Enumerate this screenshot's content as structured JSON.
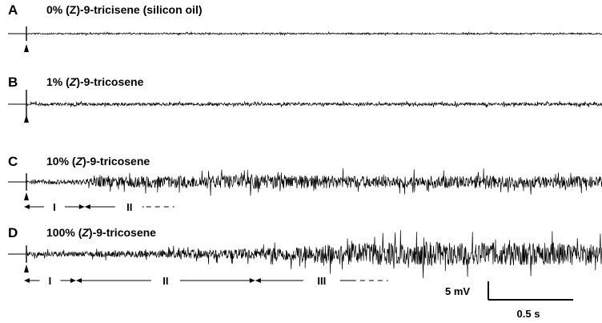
{
  "chart_data": {
    "type": "line",
    "panels": [
      {
        "label": "A",
        "title_parts": [
          {
            "text": "0% (",
            "italic": false
          },
          {
            "text": "Z",
            "italic": false
          },
          {
            "text": ")-9-tricisene  (silicon oil)",
            "italic": false
          }
        ],
        "activity_profile": [
          [
            0,
            0.06
          ],
          [
            1,
            0.06
          ]
        ],
        "stimulus_artifact": 0.5,
        "phases": []
      },
      {
        "label": "B",
        "title_parts": [
          {
            "text": "1% (",
            "italic": false
          },
          {
            "text": "Z",
            "italic": true
          },
          {
            "text": ")-9-tricosene",
            "italic": false
          }
        ],
        "activity_profile": [
          [
            0,
            0.12
          ],
          [
            1,
            0.12
          ]
        ],
        "stimulus_artifact": 1.0,
        "phases": []
      },
      {
        "label": "C",
        "title_parts": [
          {
            "text": "10% (",
            "italic": false
          },
          {
            "text": "Z",
            "italic": true
          },
          {
            "text": ")-9-tricosene",
            "italic": false
          }
        ],
        "activity_profile": [
          [
            0,
            0.18
          ],
          [
            0.1,
            0.22
          ],
          [
            0.12,
            0.4
          ],
          [
            0.4,
            0.62
          ],
          [
            0.6,
            0.5
          ],
          [
            0.8,
            0.52
          ],
          [
            1,
            0.45
          ]
        ],
        "stimulus_artifact": 0.6,
        "phases": [
          {
            "label": "I",
            "start": 0.0,
            "end": 0.105,
            "open_end": false
          },
          {
            "label": "II",
            "start": 0.105,
            "end": 0.26,
            "open_end": true
          }
        ]
      },
      {
        "label": "D",
        "title_parts": [
          {
            "text": "100% (",
            "italic": false
          },
          {
            "text": "Z",
            "italic": true
          },
          {
            "text": ")-9-tricosene",
            "italic": false
          }
        ],
        "activity_profile": [
          [
            0,
            0.18
          ],
          [
            0.09,
            0.22
          ],
          [
            0.2,
            0.28
          ],
          [
            0.38,
            0.45
          ],
          [
            0.45,
            0.6
          ],
          [
            0.52,
            0.85
          ],
          [
            0.7,
            1.0
          ],
          [
            1,
            0.9
          ]
        ],
        "stimulus_artifact": 0.6,
        "phases": [
          {
            "label": "I",
            "start": 0.0,
            "end": 0.09,
            "open_end": false
          },
          {
            "label": "II",
            "start": 0.09,
            "end": 0.4,
            "open_end": false
          },
          {
            "label": "III",
            "start": 0.4,
            "end": 0.63,
            "open_end": true
          }
        ]
      }
    ],
    "scale_bar": {
      "voltage_label": "5 mV",
      "time_label": "0.5 s"
    }
  }
}
